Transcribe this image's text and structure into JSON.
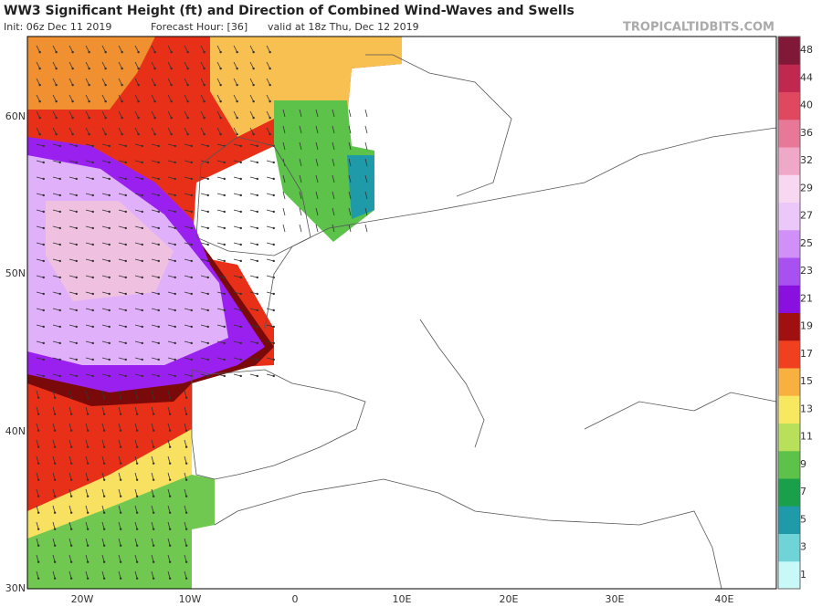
{
  "header": {
    "title": "WW3 Significant Height (ft) and Direction of Combined Wind-Waves and Swells",
    "init": "Init: 06z Dec 11 2019",
    "forecast_hour": "Forecast Hour: [36]",
    "valid": "valid at 18z Thu, Dec 12 2019",
    "watermark": "TROPICALTIDBITS.COM"
  },
  "map": {
    "lat_labels": [
      "60N",
      "50N",
      "40N",
      "30N"
    ],
    "lon_labels": [
      "20W",
      "10W",
      "0",
      "10E",
      "20E",
      "30E",
      "40E"
    ]
  },
  "colorbar": {
    "labels": [
      1,
      3,
      5,
      7,
      9,
      11,
      13,
      15,
      17,
      19,
      21,
      23,
      25,
      27,
      29,
      32,
      36,
      40,
      44,
      48
    ],
    "colors": [
      "#c8f8f8",
      "#6fd4d8",
      "#1f9aa8",
      "#1aa04a",
      "#5cc24a",
      "#b8e05a",
      "#f8e860",
      "#f8b040",
      "#f04020",
      "#a01010",
      "#8a10e0",
      "#a850f0",
      "#d090f8",
      "#ecc8fa",
      "#f8d8f0",
      "#f0a8c8",
      "#e87898",
      "#e04860",
      "#c02850",
      "#801838"
    ]
  }
}
